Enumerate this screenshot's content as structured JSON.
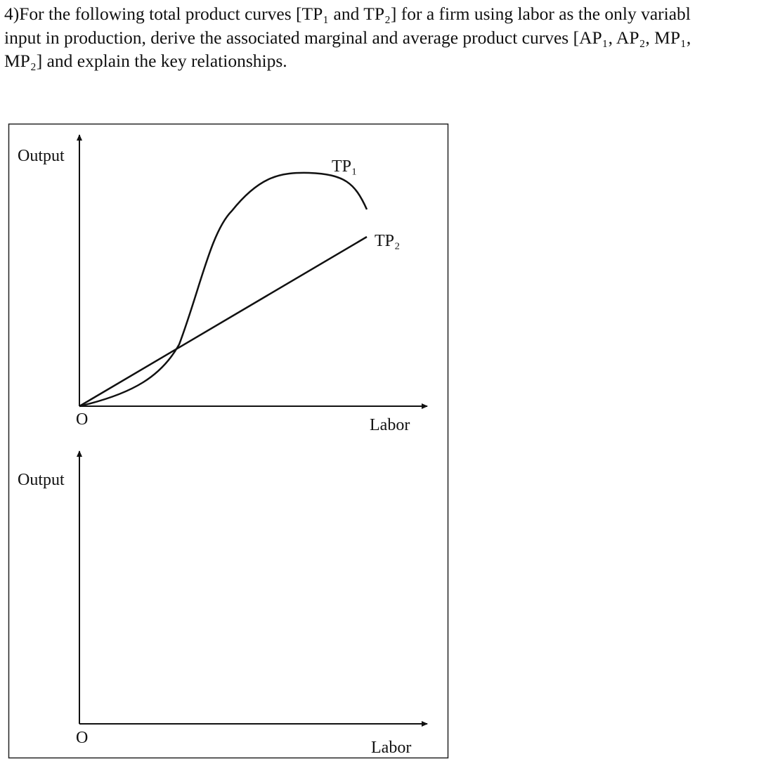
{
  "question": {
    "lines": [
      "4)For the following total product curves [TP₁ and TP₂] for a firm using labor as the only variabl",
      "input in production, derive the associated marginal and average product curves [AP₁, AP₂, MP₁,",
      "MP₂] and explain the key relationships."
    ]
  },
  "figure": {
    "top_panel": {
      "y_label": "Output",
      "origin": "O",
      "x_label": "Labor",
      "curve_1": "TP₁",
      "curve_2": "TP₂"
    },
    "bottom_panel": {
      "y_label": "Output",
      "origin": "O",
      "x_label": "Labor"
    }
  }
}
